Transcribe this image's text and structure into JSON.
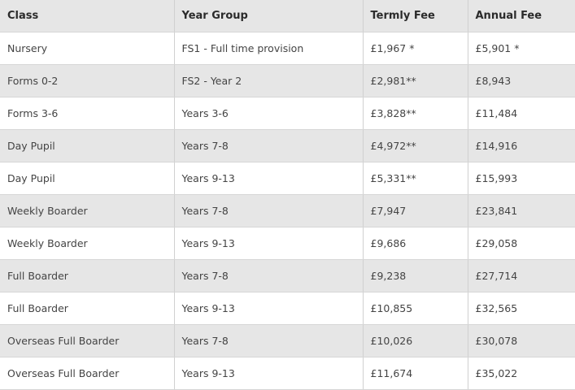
{
  "table": {
    "headers": [
      "Class",
      "Year Group",
      "Termly Fee",
      "Annual Fee"
    ],
    "rows": [
      [
        "Nursery",
        "FS1 - Full time provision",
        "£1,967 *",
        "£5,901 *"
      ],
      [
        "Forms 0-2",
        "FS2 - Year 2",
        "£2,981**",
        "£8,943"
      ],
      [
        "Forms 3-6",
        "Years 3-6",
        "£3,828**",
        "£11,484"
      ],
      [
        "Day Pupil",
        "Years 7-8",
        "£4,972**",
        "£14,916"
      ],
      [
        "Day Pupil",
        "Years 9-13",
        "£5,331**",
        "£15,993"
      ],
      [
        "Weekly Boarder",
        "Years 7-8",
        "£7,947",
        "£23,841"
      ],
      [
        "Weekly Boarder",
        "Years 9-13",
        "£9,686",
        "£29,058"
      ],
      [
        "Full Boarder",
        "Years 7-8",
        "£9,238",
        "£27,714"
      ],
      [
        "Full Boarder",
        "Years 9-13",
        "£10,855",
        "£32,565"
      ],
      [
        "Overseas Full Boarder",
        "Years 7-8",
        "£10,026",
        "£30,078"
      ],
      [
        "Overseas Full Boarder",
        "Years 9-13",
        "£11,674",
        "£35,022"
      ]
    ]
  }
}
